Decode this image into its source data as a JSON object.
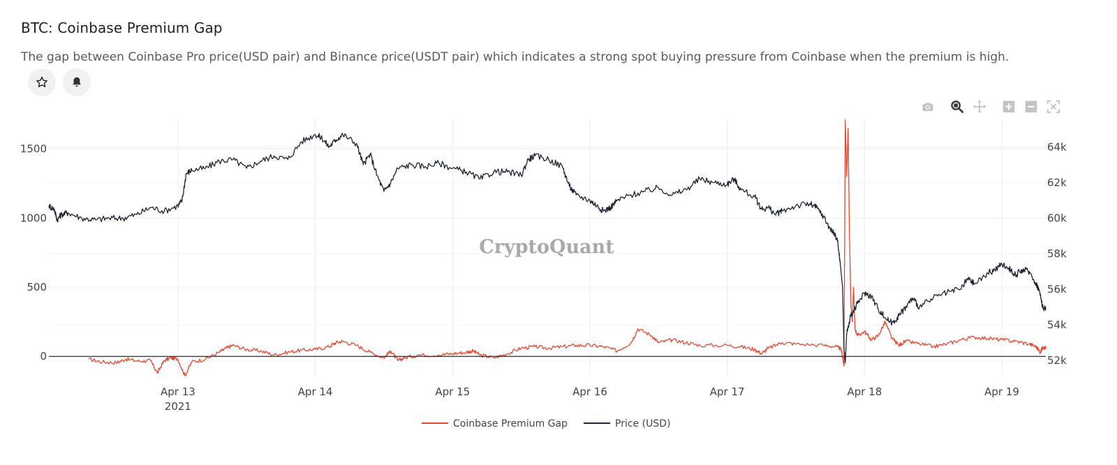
{
  "header": {
    "title": "BTC: Coinbase Premium Gap",
    "description": "The gap between Coinbase Pro price(USD pair) and Binance price(USDT pair) which indicates a strong spot buying pressure from Coinbase when the premium is high."
  },
  "actions": {
    "favorite_icon": "star-icon",
    "alert_icon": "bell-icon"
  },
  "modebar": [
    "camera-icon",
    "zoom-icon",
    "pan-icon",
    "zoom-in-icon",
    "zoom-out-icon",
    "autoscale-icon"
  ],
  "watermark": "CryptoQuant",
  "colors": {
    "premium": "#e8472f",
    "price": "#1c2433",
    "grid": "#ececec",
    "zero": "#2b2b2b"
  },
  "chart_data": {
    "type": "line",
    "title": "BTC: Coinbase Premium Gap",
    "x_ticks": [
      {
        "day": 13,
        "label": "Apr 13",
        "sublabel": "2021"
      },
      {
        "day": 14,
        "label": "Apr 14"
      },
      {
        "day": 15,
        "label": "Apr 15"
      },
      {
        "day": 16,
        "label": "Apr 16"
      },
      {
        "day": 17,
        "label": "Apr 17"
      },
      {
        "day": 18,
        "label": "Apr 18"
      },
      {
        "day": 19,
        "label": "Apr 19"
      }
    ],
    "xlim": [
      12.06,
      19.32
    ],
    "y_left": {
      "ticks": [
        0,
        500,
        1000,
        1500
      ],
      "tick_labels": [
        "0",
        "500",
        "1000",
        "1500"
      ],
      "ylim": [
        -145,
        1720
      ]
    },
    "y_right": {
      "ticks": [
        52000,
        54000,
        56000,
        58000,
        60000,
        62000,
        64000
      ],
      "tick_labels": [
        "52k",
        "54k",
        "56k",
        "58k",
        "60k",
        "62k",
        "64k"
      ],
      "ylim": [
        51100,
        65600
      ]
    },
    "legend": [
      "Coinbase Premium Gap",
      "Price (USD)"
    ],
    "series": [
      {
        "name": "Coinbase Premium Gap",
        "axis": "left",
        "color": "#e8472f",
        "points": [
          [
            12.35,
            -20
          ],
          [
            12.45,
            -40
          ],
          [
            12.55,
            -45
          ],
          [
            12.62,
            -20
          ],
          [
            12.72,
            -35
          ],
          [
            12.8,
            -30
          ],
          [
            12.85,
            -120
          ],
          [
            12.9,
            -30
          ],
          [
            12.95,
            -10
          ],
          [
            13.0,
            -20
          ],
          [
            13.05,
            -140
          ],
          [
            13.1,
            -40
          ],
          [
            13.2,
            -20
          ],
          [
            13.3,
            30
          ],
          [
            13.35,
            60
          ],
          [
            13.4,
            80
          ],
          [
            13.5,
            50
          ],
          [
            13.6,
            40
          ],
          [
            13.7,
            10
          ],
          [
            13.8,
            30
          ],
          [
            13.9,
            45
          ],
          [
            14.0,
            50
          ],
          [
            14.1,
            70
          ],
          [
            14.15,
            100
          ],
          [
            14.2,
            110
          ],
          [
            14.3,
            80
          ],
          [
            14.4,
            30
          ],
          [
            14.5,
            -10
          ],
          [
            14.55,
            40
          ],
          [
            14.6,
            -30
          ],
          [
            14.65,
            -10
          ],
          [
            14.75,
            10
          ],
          [
            14.9,
            10
          ],
          [
            15.0,
            20
          ],
          [
            15.1,
            30
          ],
          [
            15.15,
            40
          ],
          [
            15.2,
            10
          ],
          [
            15.3,
            -10
          ],
          [
            15.4,
            20
          ],
          [
            15.5,
            60
          ],
          [
            15.6,
            70
          ],
          [
            15.7,
            60
          ],
          [
            15.8,
            70
          ],
          [
            15.9,
            80
          ],
          [
            16.0,
            80
          ],
          [
            16.1,
            70
          ],
          [
            16.2,
            40
          ],
          [
            16.3,
            100
          ],
          [
            16.35,
            200
          ],
          [
            16.45,
            150
          ],
          [
            16.5,
            100
          ],
          [
            16.6,
            120
          ],
          [
            16.7,
            100
          ],
          [
            16.8,
            80
          ],
          [
            17.0,
            80
          ],
          [
            17.1,
            70
          ],
          [
            17.2,
            50
          ],
          [
            17.25,
            20
          ],
          [
            17.3,
            60
          ],
          [
            17.4,
            100
          ],
          [
            17.5,
            90
          ],
          [
            17.7,
            80
          ],
          [
            17.8,
            70
          ],
          [
            17.83,
            50
          ],
          [
            17.85,
            -70
          ],
          [
            17.86,
            1710
          ],
          [
            17.87,
            1300
          ],
          [
            17.88,
            1650
          ],
          [
            17.89,
            900
          ],
          [
            17.9,
            400
          ],
          [
            17.91,
            250
          ],
          [
            17.92,
            500
          ],
          [
            17.93,
            200
          ],
          [
            17.95,
            150
          ],
          [
            18.0,
            180
          ],
          [
            18.05,
            120
          ],
          [
            18.1,
            150
          ],
          [
            18.15,
            250
          ],
          [
            18.2,
            130
          ],
          [
            18.25,
            80
          ],
          [
            18.3,
            110
          ],
          [
            18.4,
            90
          ],
          [
            18.5,
            70
          ],
          [
            18.6,
            90
          ],
          [
            18.7,
            120
          ],
          [
            18.8,
            140
          ],
          [
            18.9,
            130
          ],
          [
            19.0,
            120
          ],
          [
            19.1,
            110
          ],
          [
            19.2,
            90
          ],
          [
            19.25,
            70
          ],
          [
            19.28,
            30
          ],
          [
            19.3,
            70
          ],
          [
            19.32,
            60
          ]
        ]
      },
      {
        "name": "Price (USD)",
        "axis": "right",
        "color": "#1c2433",
        "points": [
          [
            12.06,
            60700
          ],
          [
            12.1,
            60500
          ],
          [
            12.12,
            59900
          ],
          [
            12.15,
            60200
          ],
          [
            12.2,
            60300
          ],
          [
            12.3,
            60000
          ],
          [
            12.4,
            59900
          ],
          [
            12.5,
            60000
          ],
          [
            12.6,
            60000
          ],
          [
            12.7,
            60200
          ],
          [
            12.8,
            60600
          ],
          [
            12.9,
            60400
          ],
          [
            13.0,
            60700
          ],
          [
            13.03,
            61000
          ],
          [
            13.06,
            62500
          ],
          [
            13.1,
            62700
          ],
          [
            13.2,
            62800
          ],
          [
            13.3,
            63200
          ],
          [
            13.4,
            63300
          ],
          [
            13.5,
            62800
          ],
          [
            13.6,
            63200
          ],
          [
            13.7,
            63500
          ],
          [
            13.8,
            63300
          ],
          [
            13.9,
            64300
          ],
          [
            14.0,
            64700
          ],
          [
            14.05,
            64500
          ],
          [
            14.1,
            64000
          ],
          [
            14.15,
            64400
          ],
          [
            14.2,
            64700
          ],
          [
            14.3,
            64200
          ],
          [
            14.35,
            63000
          ],
          [
            14.4,
            63600
          ],
          [
            14.45,
            62400
          ],
          [
            14.5,
            61500
          ],
          [
            14.55,
            62000
          ],
          [
            14.6,
            62800
          ],
          [
            14.7,
            63000
          ],
          [
            14.8,
            62900
          ],
          [
            14.9,
            63100
          ],
          [
            15.0,
            62800
          ],
          [
            15.1,
            62600
          ],
          [
            15.2,
            62200
          ],
          [
            15.3,
            62600
          ],
          [
            15.4,
            62600
          ],
          [
            15.5,
            62400
          ],
          [
            15.55,
            63300
          ],
          [
            15.6,
            63500
          ],
          [
            15.7,
            63300
          ],
          [
            15.8,
            62900
          ],
          [
            15.85,
            61800
          ],
          [
            15.9,
            61300
          ],
          [
            16.0,
            61000
          ],
          [
            16.05,
            60700
          ],
          [
            16.1,
            60400
          ],
          [
            16.15,
            60600
          ],
          [
            16.2,
            61000
          ],
          [
            16.3,
            61300
          ],
          [
            16.4,
            61500
          ],
          [
            16.5,
            61700
          ],
          [
            16.6,
            61300
          ],
          [
            16.7,
            61600
          ],
          [
            16.8,
            62200
          ],
          [
            16.9,
            62000
          ],
          [
            17.0,
            61900
          ],
          [
            17.05,
            62200
          ],
          [
            17.1,
            61600
          ],
          [
            17.2,
            61200
          ],
          [
            17.25,
            60500
          ],
          [
            17.3,
            60600
          ],
          [
            17.35,
            60200
          ],
          [
            17.4,
            60400
          ],
          [
            17.5,
            60700
          ],
          [
            17.6,
            60800
          ],
          [
            17.65,
            60600
          ],
          [
            17.7,
            60100
          ],
          [
            17.75,
            59400
          ],
          [
            17.8,
            58900
          ],
          [
            17.82,
            57700
          ],
          [
            17.84,
            56100
          ],
          [
            17.85,
            52600
          ],
          [
            17.86,
            51900
          ],
          [
            17.87,
            53500
          ],
          [
            17.9,
            54500
          ],
          [
            17.95,
            55200
          ],
          [
            18.0,
            55800
          ],
          [
            18.05,
            55600
          ],
          [
            18.1,
            54900
          ],
          [
            18.15,
            54400
          ],
          [
            18.2,
            54100
          ],
          [
            18.25,
            54500
          ],
          [
            18.3,
            55000
          ],
          [
            18.35,
            55500
          ],
          [
            18.4,
            55000
          ],
          [
            18.5,
            55500
          ],
          [
            18.6,
            55800
          ],
          [
            18.7,
            56000
          ],
          [
            18.75,
            56600
          ],
          [
            18.8,
            56300
          ],
          [
            18.9,
            56900
          ],
          [
            18.95,
            57100
          ],
          [
            19.0,
            57400
          ],
          [
            19.05,
            57200
          ],
          [
            19.1,
            56800
          ],
          [
            19.15,
            57100
          ],
          [
            19.2,
            57000
          ],
          [
            19.25,
            56300
          ],
          [
            19.27,
            56000
          ],
          [
            19.29,
            55300
          ],
          [
            19.3,
            54900
          ],
          [
            19.32,
            55000
          ]
        ]
      }
    ]
  }
}
